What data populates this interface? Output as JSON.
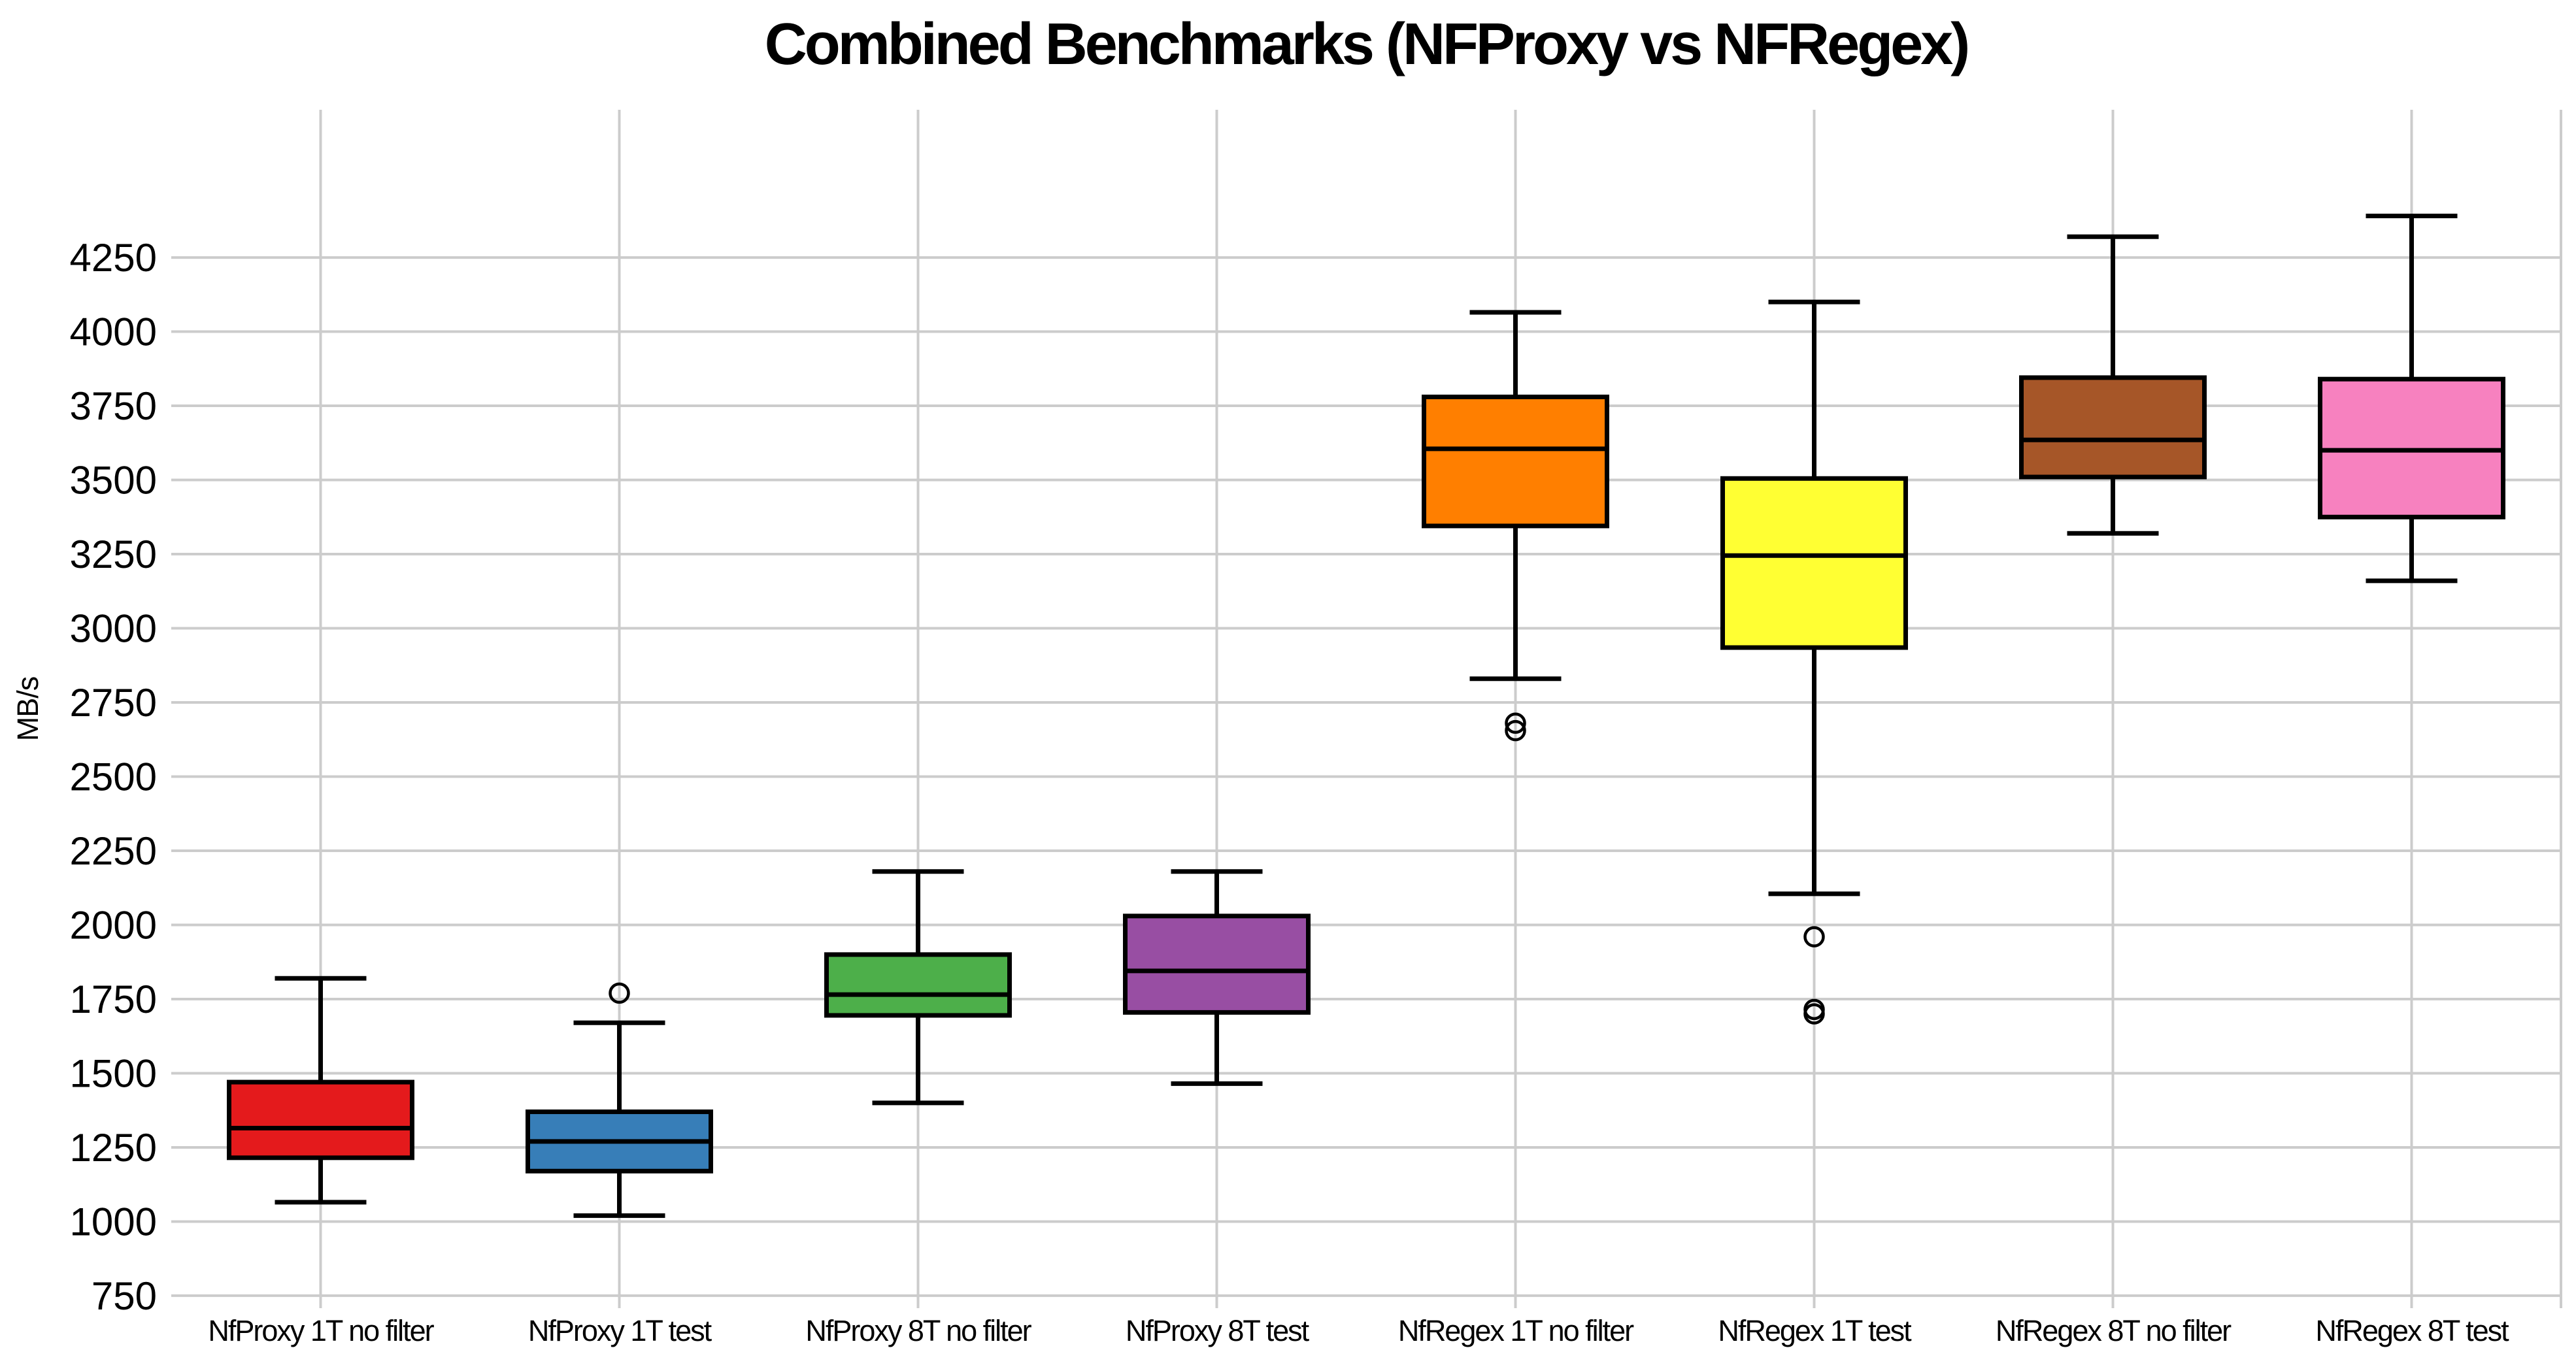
{
  "page": {
    "background": "#ffffff",
    "text_color": "#000000"
  },
  "chart_data": {
    "type": "boxplot",
    "title": "Combined Benchmarks (NFProxy vs NFRegex)",
    "xlabel": "",
    "ylabel": "MB/s",
    "ylim": [
      708,
      4748
    ],
    "y_ticks": [
      750,
      1000,
      1250,
      1500,
      1750,
      2000,
      2250,
      2500,
      2750,
      3000,
      3250,
      3500,
      3750,
      4000,
      4250
    ],
    "grid": true,
    "grid_color": "#cccccc",
    "box_edge_color": "#000000",
    "legend": "none",
    "categories": [
      "NfProxy 1T no filter",
      "NfProxy 1T test",
      "NfProxy 8T no filter",
      "NfProxy 8T test",
      "NfRegex 1T no filter",
      "NfRegex 1T test",
      "NfRegex 8T no filter",
      "NfRegex 8T test"
    ],
    "series": [
      {
        "name": "NfProxy 1T no filter",
        "color": "#e41a1c",
        "whisker_low": 1065,
        "q1": 1215,
        "median": 1315,
        "q3": 1470,
        "whisker_high": 1820,
        "outliers": []
      },
      {
        "name": "NfProxy 1T test",
        "color": "#377eb8",
        "whisker_low": 1020,
        "q1": 1170,
        "median": 1270,
        "q3": 1370,
        "whisker_high": 1670,
        "outliers": [
          1770
        ]
      },
      {
        "name": "NfProxy 8T no filter",
        "color": "#4daf4a",
        "whisker_low": 1400,
        "q1": 1695,
        "median": 1765,
        "q3": 1900,
        "whisker_high": 2180,
        "outliers": []
      },
      {
        "name": "NfProxy 8T test",
        "color": "#984ea3",
        "whisker_low": 1465,
        "q1": 1705,
        "median": 1845,
        "q3": 2030,
        "whisker_high": 2180,
        "outliers": []
      },
      {
        "name": "NfRegex 1T no filter",
        "color": "#ff7f00",
        "whisker_low": 2830,
        "q1": 3345,
        "median": 3605,
        "q3": 3780,
        "whisker_high": 4065,
        "outliers": [
          2680,
          2655
        ]
      },
      {
        "name": "NfRegex 1T test",
        "color": "#ffff33",
        "whisker_low": 2105,
        "q1": 2935,
        "median": 3245,
        "q3": 3505,
        "whisker_high": 4100,
        "outliers": [
          1960,
          1715,
          1700
        ]
      },
      {
        "name": "NfRegex 8T no filter",
        "color": "#a65628",
        "whisker_low": 3320,
        "q1": 3510,
        "median": 3635,
        "q3": 3845,
        "whisker_high": 4320,
        "outliers": []
      },
      {
        "name": "NfRegex 8T test",
        "color": "#f781bf",
        "whisker_low": 3160,
        "q1": 3375,
        "median": 3600,
        "q3": 3840,
        "whisker_high": 4390,
        "outliers": []
      }
    ]
  }
}
